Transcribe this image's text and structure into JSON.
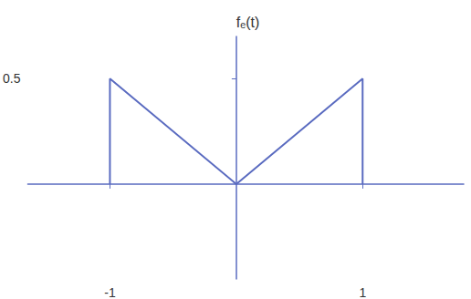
{
  "chart_data": {
    "type": "line",
    "ylabel": "fₑ(t)",
    "x": [
      -1,
      -1,
      0,
      1,
      1
    ],
    "values": [
      0,
      0.5,
      0,
      0.5,
      0
    ],
    "color": "#5a6bc0",
    "xlim": [
      -1.65,
      1.8
    ],
    "xticks": [
      -1,
      1
    ],
    "ylim": [
      -0.45,
      0.7
    ],
    "yticks": [
      0.5
    ],
    "grid": false
  }
}
